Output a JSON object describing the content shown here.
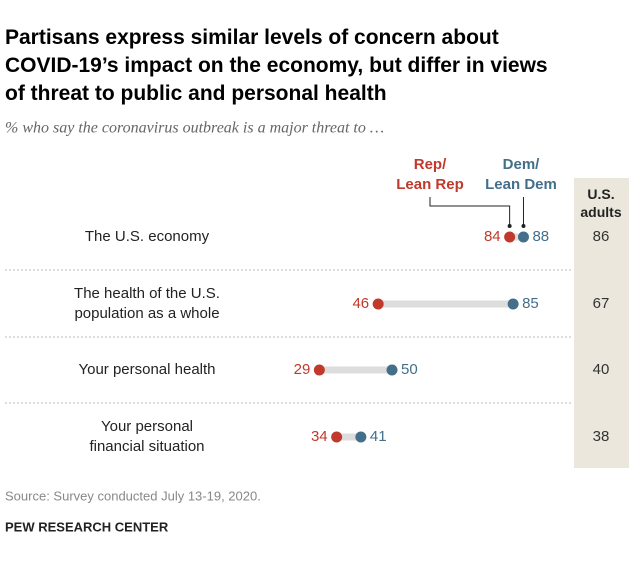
{
  "chart_data": {
    "type": "dot",
    "title": "Partisans express similar levels of concern about\nCOVID-19’s impact on the economy, but differ in views\nof threat to public and personal health",
    "subtitle": "% who say the coronavirus outbreak is a major threat to …",
    "categories": [
      "The U.S. economy",
      "The health of the U.S.\npopulation as a whole",
      "Your personal health",
      "Your personal\nfinancial situation"
    ],
    "series": [
      {
        "name": "Rep/\nLean Rep",
        "color": "#c0392b",
        "values": [
          84,
          46,
          29,
          34
        ]
      },
      {
        "name": "Dem/\nLean Dem",
        "color": "#436f8a",
        "values": [
          88,
          85,
          50,
          41
        ]
      }
    ],
    "us_adults": {
      "name": "U.S.\nadults",
      "values": [
        86,
        67,
        40,
        38
      ]
    },
    "source": "Source: Survey conducted July 13-19, 2020.",
    "credit": "PEW RESEARCH CENTER"
  }
}
